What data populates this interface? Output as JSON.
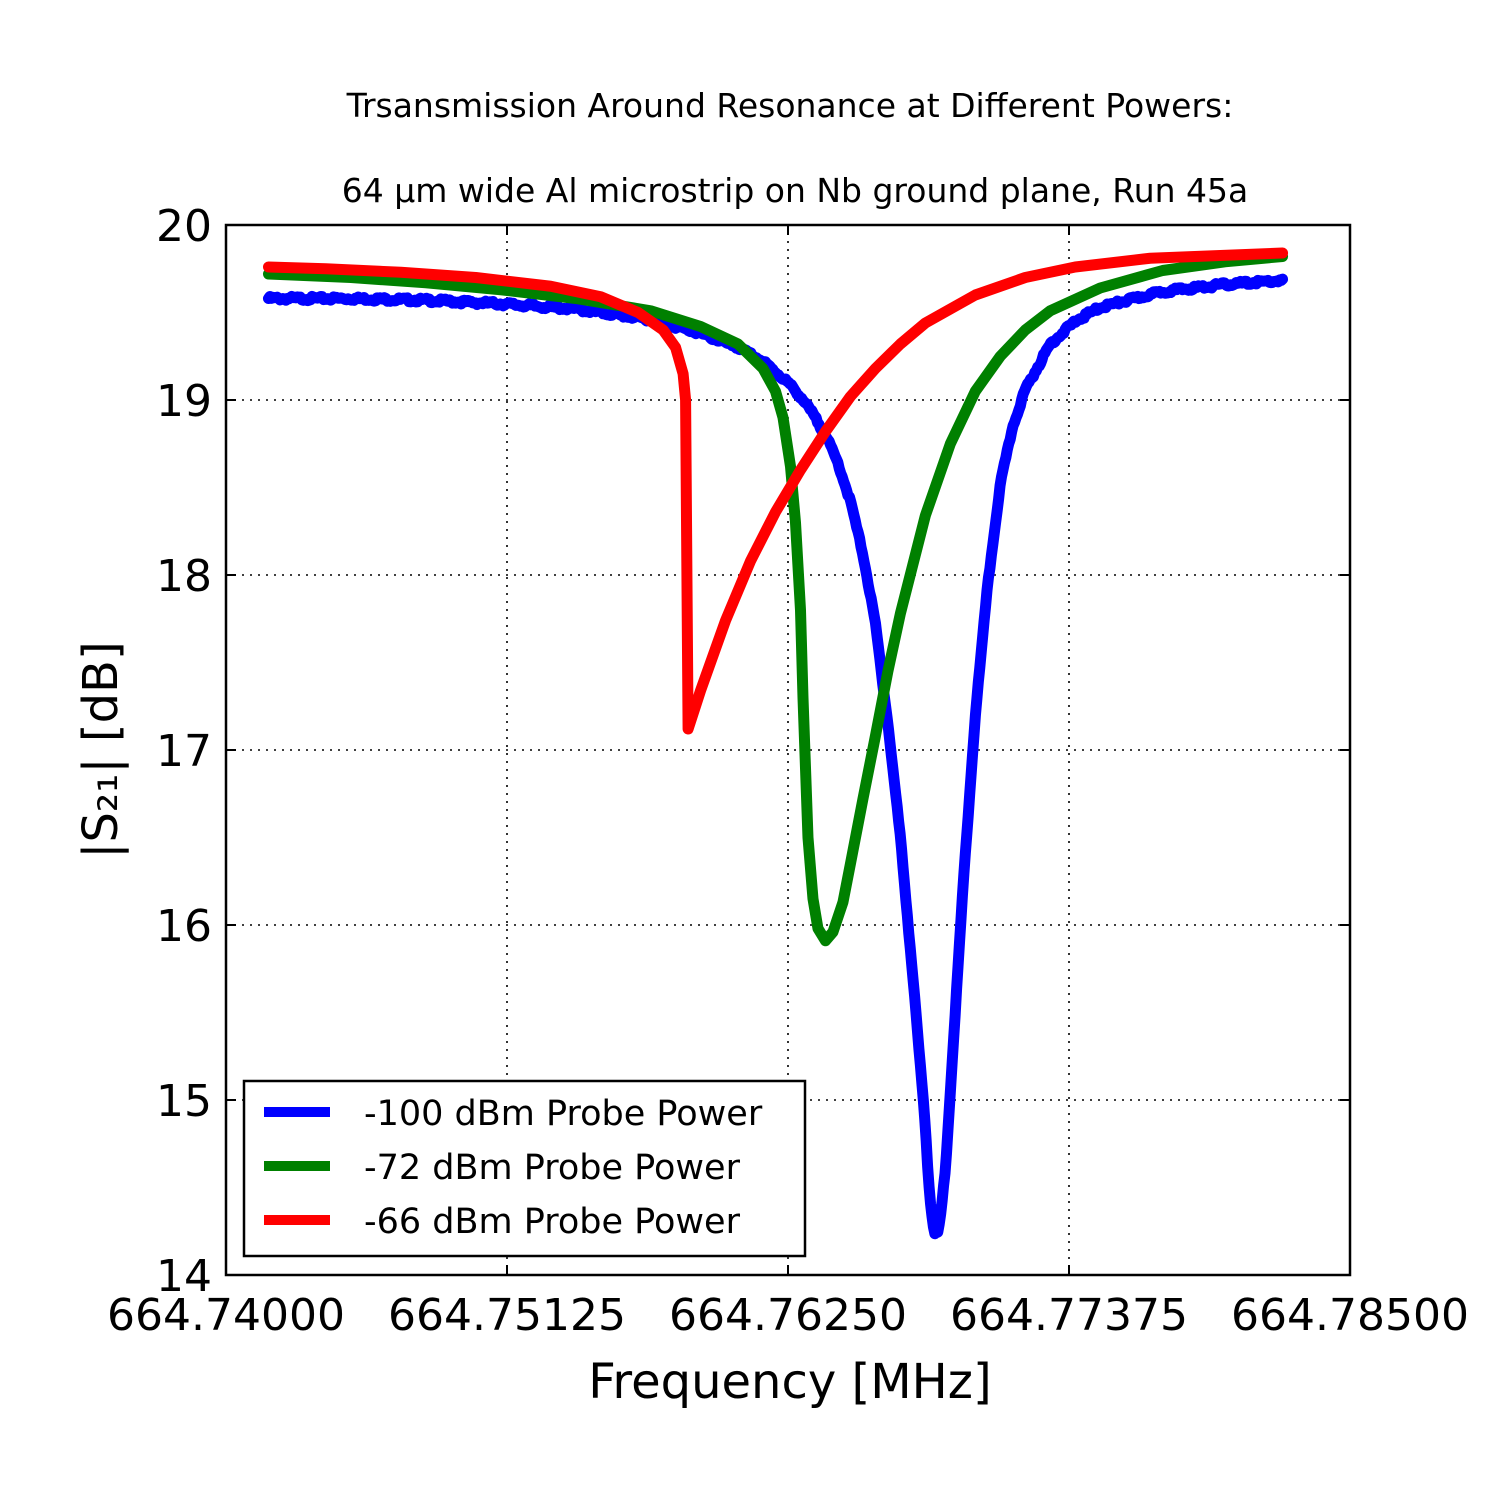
{
  "chart_data": {
    "type": "line",
    "title": "Trsansmission Around Resonance at Different Powers:",
    "subtitle": "64 μm wide Al microstrip on Nb ground plane, Run 45a",
    "xlabel": "Frequency [MHz]",
    "ylabel": "|S₂₁| [dB]",
    "xlim": [
      664.74,
      664.785
    ],
    "ylim": [
      14,
      20
    ],
    "x_ticks": [
      664.74,
      664.75125,
      664.7625,
      664.77375,
      664.785
    ],
    "x_tick_labels": [
      "664.74000",
      "664.75125",
      "664.76250",
      "664.77375",
      "664.78500"
    ],
    "y_ticks": [
      14,
      15,
      16,
      17,
      18,
      19,
      20
    ],
    "y_tick_labels": [
      "14",
      "15",
      "16",
      "17",
      "18",
      "19",
      "20"
    ],
    "grid": true,
    "legend_position": "bottom-left",
    "series": [
      {
        "name": "-100 dBm Probe Power",
        "color": "#0000ff",
        "noisy": true,
        "points": [
          [
            664.7417,
            19.58
          ],
          [
            664.745,
            19.58
          ],
          [
            664.748,
            19.57
          ],
          [
            664.751,
            19.55
          ],
          [
            664.754,
            19.52
          ],
          [
            664.757,
            19.46
          ],
          [
            664.759,
            19.38
          ],
          [
            664.7605,
            19.3
          ],
          [
            664.7615,
            19.22
          ],
          [
            664.762,
            19.16
          ],
          [
            664.7625,
            19.1
          ],
          [
            664.763,
            19.02
          ],
          [
            664.7635,
            18.92
          ],
          [
            664.764,
            18.8
          ],
          [
            664.7645,
            18.64
          ],
          [
            664.765,
            18.42
          ],
          [
            664.7655,
            18.12
          ],
          [
            664.766,
            17.72
          ],
          [
            664.7665,
            17.15
          ],
          [
            664.767,
            16.5
          ],
          [
            664.7675,
            15.7
          ],
          [
            664.768,
            14.85
          ],
          [
            664.7681,
            14.6
          ],
          [
            664.7682,
            14.42
          ],
          [
            664.7683,
            14.3
          ],
          [
            664.7684,
            14.23
          ],
          [
            664.7685,
            14.24
          ],
          [
            664.7686,
            14.32
          ],
          [
            664.7688,
            14.6
          ],
          [
            664.769,
            15.05
          ],
          [
            664.7695,
            16.2
          ],
          [
            664.77,
            17.2
          ],
          [
            664.7705,
            17.95
          ],
          [
            664.771,
            18.52
          ],
          [
            664.7715,
            18.85
          ],
          [
            664.772,
            19.06
          ],
          [
            664.773,
            19.32
          ],
          [
            664.774,
            19.45
          ],
          [
            664.775,
            19.53
          ],
          [
            664.7775,
            19.62
          ],
          [
            664.78,
            19.66
          ],
          [
            664.782,
            19.68
          ],
          [
            664.7823,
            19.68
          ]
        ]
      },
      {
        "name": "-72 dBm Probe Power",
        "color": "#008000",
        "noisy": false,
        "points": [
          [
            664.7417,
            19.72
          ],
          [
            664.745,
            19.7
          ],
          [
            664.748,
            19.67
          ],
          [
            664.751,
            19.63
          ],
          [
            664.754,
            19.58
          ],
          [
            664.757,
            19.51
          ],
          [
            664.759,
            19.42
          ],
          [
            664.7605,
            19.32
          ],
          [
            664.7615,
            19.18
          ],
          [
            664.762,
            19.05
          ],
          [
            664.7623,
            18.9
          ],
          [
            664.7626,
            18.62
          ],
          [
            664.7628,
            18.3
          ],
          [
            664.763,
            17.8
          ],
          [
            664.7631,
            17.3
          ],
          [
            664.7632,
            16.9
          ],
          [
            664.7633,
            16.5
          ],
          [
            664.7635,
            16.15
          ],
          [
            664.7637,
            15.98
          ],
          [
            664.764,
            15.91
          ],
          [
            664.7643,
            15.96
          ],
          [
            664.7647,
            16.13
          ],
          [
            664.765,
            16.35
          ],
          [
            664.7655,
            16.72
          ],
          [
            664.766,
            17.08
          ],
          [
            664.7665,
            17.45
          ],
          [
            664.767,
            17.78
          ],
          [
            664.768,
            18.34
          ],
          [
            664.769,
            18.75
          ],
          [
            664.77,
            19.05
          ],
          [
            664.771,
            19.25
          ],
          [
            664.772,
            19.4
          ],
          [
            664.773,
            19.51
          ],
          [
            664.775,
            19.64
          ],
          [
            664.7775,
            19.74
          ],
          [
            664.78,
            19.79
          ],
          [
            664.7823,
            19.82
          ]
        ]
      },
      {
        "name": "-66 dBm Probe Power",
        "color": "#ff0000",
        "noisy": false,
        "points": [
          [
            664.7417,
            19.76
          ],
          [
            664.744,
            19.75
          ],
          [
            664.747,
            19.73
          ],
          [
            664.75,
            19.7
          ],
          [
            664.753,
            19.65
          ],
          [
            664.755,
            19.59
          ],
          [
            664.7565,
            19.5
          ],
          [
            664.7575,
            19.4
          ],
          [
            664.758,
            19.3
          ],
          [
            664.7583,
            19.15
          ],
          [
            664.7584,
            19.0
          ],
          [
            664.7585,
            17.12
          ],
          [
            664.759,
            17.34
          ],
          [
            664.76,
            17.74
          ],
          [
            664.761,
            18.08
          ],
          [
            664.762,
            18.36
          ],
          [
            664.763,
            18.6
          ],
          [
            664.764,
            18.82
          ],
          [
            664.765,
            19.02
          ],
          [
            664.766,
            19.18
          ],
          [
            664.767,
            19.32
          ],
          [
            664.768,
            19.44
          ],
          [
            664.77,
            19.6
          ],
          [
            664.772,
            19.7
          ],
          [
            664.774,
            19.76
          ],
          [
            664.777,
            19.81
          ],
          [
            664.7823,
            19.84
          ]
        ]
      }
    ]
  }
}
